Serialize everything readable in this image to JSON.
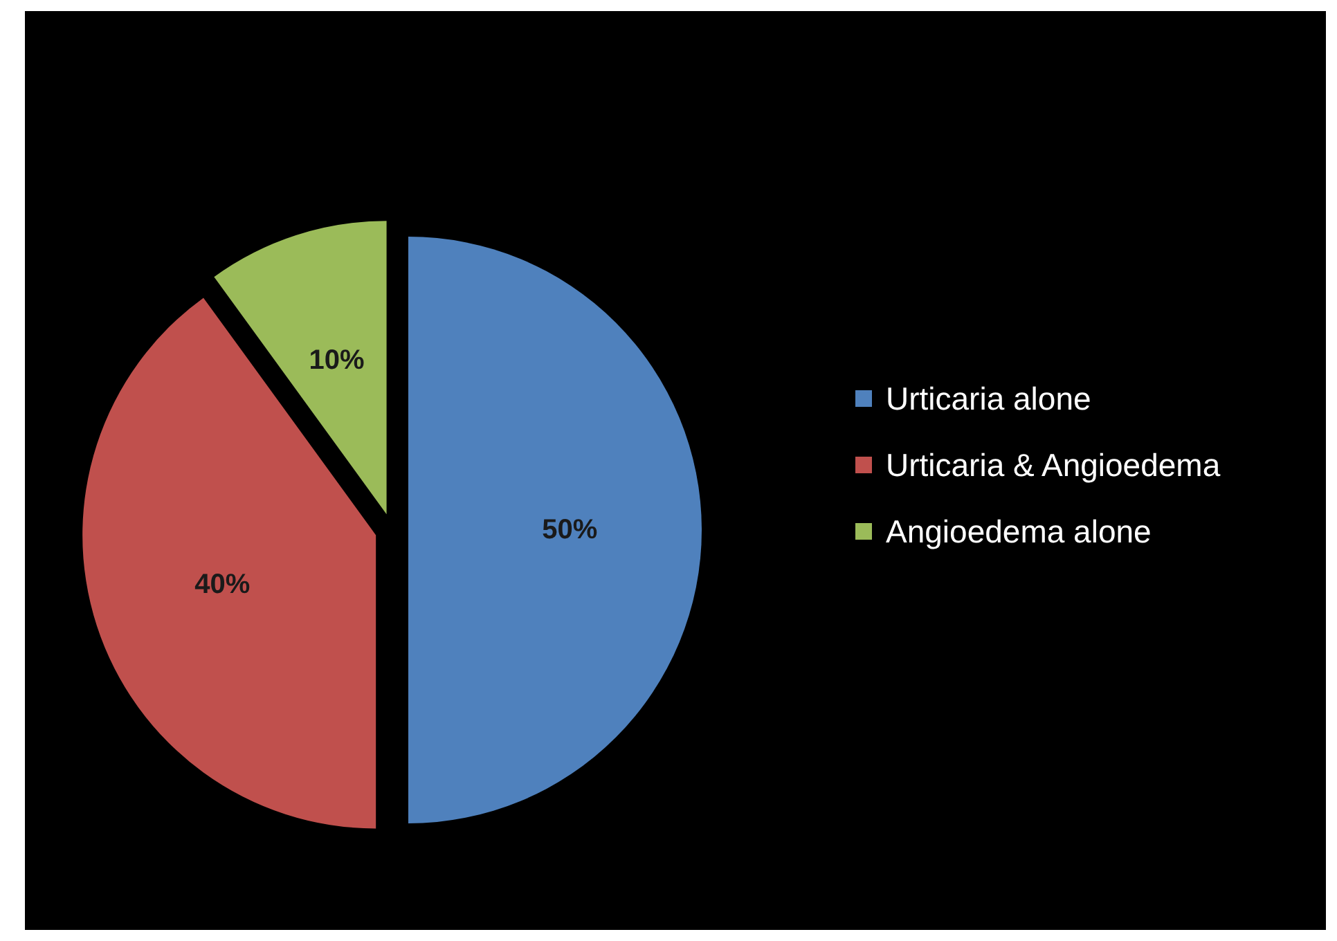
{
  "chart_data": {
    "type": "pie",
    "categories": [
      "Urticaria alone",
      "Urticaria & Angioedema",
      "Angioedema alone"
    ],
    "values": [
      50,
      40,
      10
    ],
    "value_labels": [
      "50%",
      "40%",
      "10%"
    ],
    "colors": [
      "#4f81bd",
      "#c0504d",
      "#9bbb59"
    ],
    "legend": "right"
  }
}
